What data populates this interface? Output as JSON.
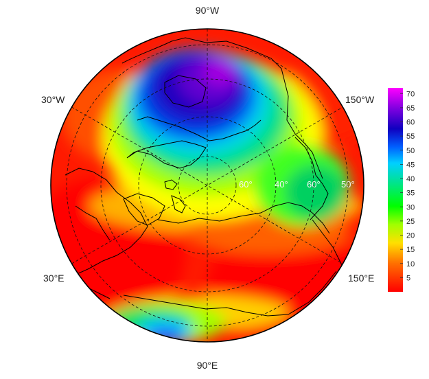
{
  "map": {
    "projection": "north-polar-stereographic",
    "longitude_labels": {
      "top": "90°W",
      "bottom": "90°E",
      "upper_left": "30°W",
      "upper_right": "150°W",
      "lower_left": "30°E",
      "lower_right": "150°E"
    },
    "latitude_labels": [
      "60°",
      "60°",
      "50°",
      "40°"
    ],
    "colorbar": {
      "ticks": [
        "70",
        "65",
        "60",
        "55",
        "50",
        "45",
        "40",
        "35",
        "30",
        "25",
        "20",
        "15",
        "10",
        "5"
      ],
      "range": [
        0,
        72
      ],
      "colors": [
        "#ff0000",
        "#ff4000",
        "#ff8000",
        "#ffc000",
        "#ffff00",
        "#a0ff00",
        "#00ff00",
        "#00e080",
        "#00d8d8",
        "#0098ff",
        "#0030e0",
        "#2000c0",
        "#8000e0",
        "#ff00ff"
      ]
    },
    "coast_color": "#000000",
    "grid_style": "dashed"
  }
}
